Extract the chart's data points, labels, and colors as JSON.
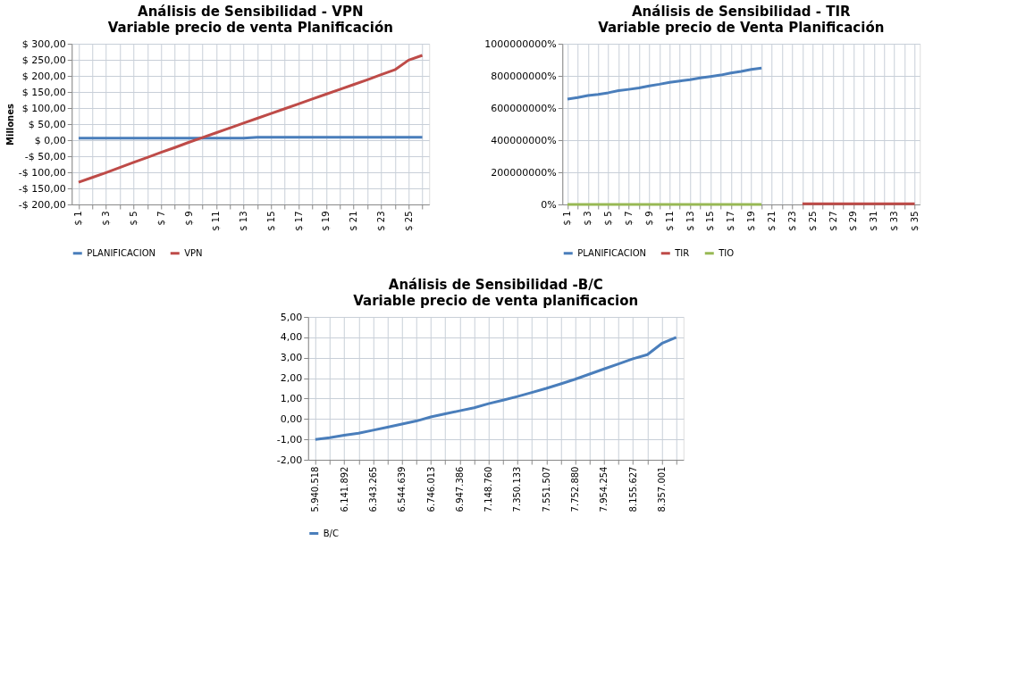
{
  "chart_data": [
    {
      "type": "line",
      "title": "Análisis de Sensibilidad - VPN",
      "subtitle": "Variable precio de venta Planificación",
      "ylabel": "Millones",
      "categories": [
        "$ 1",
        null,
        "$ 3",
        null,
        "$ 5",
        null,
        "$ 7",
        null,
        "$ 9",
        null,
        "$ 11",
        null,
        "$ 13",
        null,
        "$ 15",
        null,
        "$ 17",
        null,
        "$ 19",
        null,
        "$ 21",
        null,
        "$ 23",
        null,
        "$ 25",
        null
      ],
      "series": [
        {
          "name": "PLANIFICACION",
          "color": "#4a7ebb",
          "values": [
            6,
            6,
            6,
            6,
            6,
            6,
            6,
            6,
            6,
            6,
            6,
            6,
            6,
            9,
            9,
            9,
            9,
            9,
            9,
            9,
            9,
            9,
            9,
            9,
            9,
            9
          ]
        },
        {
          "name": "VPN",
          "color": "#be4b48",
          "values": [
            -131,
            -116,
            -101,
            -85,
            -69,
            -54,
            -38,
            -23,
            -7,
            8,
            23,
            38,
            53,
            68,
            83,
            98,
            113,
            128,
            143,
            158,
            173,
            188,
            204,
            219,
            249,
            264
          ]
        }
      ],
      "ylim": [
        -200,
        300
      ],
      "yticks": [
        {
          "value": -200,
          "label": "-$ 200,00"
        },
        {
          "value": -150,
          "label": "-$ 150,00"
        },
        {
          "value": -100,
          "label": "-$ 100,00"
        },
        {
          "value": -50,
          "label": "-$ 50,00"
        },
        {
          "value": 0,
          "label": "$ 0,00"
        },
        {
          "value": 50,
          "label": "$ 50,00"
        },
        {
          "value": 100,
          "label": "$ 100,00"
        },
        {
          "value": 150,
          "label": "$ 150,00"
        },
        {
          "value": 200,
          "label": "$ 200,00"
        },
        {
          "value": 250,
          "label": "$ 250,00"
        },
        {
          "value": 300,
          "label": "$ 300,00"
        }
      ],
      "grid": true,
      "legend": "bottom"
    },
    {
      "type": "line",
      "title": "Análisis de Sensibilidad - TIR",
      "subtitle": "Variable precio de Venta Planificación",
      "categories": [
        "$ 1",
        null,
        "$ 3",
        null,
        "$ 5",
        null,
        "$ 7",
        null,
        "$ 9",
        null,
        "$ 11",
        null,
        "$ 13",
        null,
        "$ 15",
        null,
        "$ 17",
        null,
        "$ 19",
        null,
        "$ 21",
        null,
        "$ 23",
        null,
        "$ 25",
        null,
        "$ 27",
        null,
        "$ 29",
        null,
        "$ 31",
        null,
        "$ 33",
        null,
        "$ 35"
      ],
      "series": [
        {
          "name": "PLANIFICACION",
          "color": "#4a7ebb",
          "values": [
            655000000,
            665000000,
            678000000,
            685000000,
            695000000,
            708000000,
            716000000,
            725000000,
            738000000,
            748000000,
            760000000,
            768000000,
            776000000,
            788000000,
            796000000,
            805000000,
            818000000,
            828000000,
            840000000,
            848000000,
            null,
            null,
            null,
            null,
            null,
            null,
            null,
            null,
            null,
            null,
            null,
            null,
            null,
            null,
            null
          ]
        },
        {
          "name": "TIR",
          "color": "#be4b48",
          "values": [
            null,
            null,
            null,
            null,
            null,
            null,
            null,
            null,
            null,
            null,
            null,
            null,
            null,
            null,
            null,
            null,
            null,
            null,
            null,
            null,
            null,
            null,
            null,
            4000000,
            4000000,
            4000000,
            4000000,
            4000000,
            4000000,
            4000000,
            4000000,
            4000000,
            4000000,
            4000000,
            4000000
          ]
        },
        {
          "name": "TIO",
          "color": "#98b954",
          "values": [
            0,
            0,
            0,
            0,
            0,
            0,
            0,
            0,
            0,
            0,
            0,
            0,
            0,
            0,
            0,
            0,
            0,
            0,
            0,
            0,
            null,
            null,
            null,
            null,
            null,
            null,
            null,
            null,
            null,
            null,
            null,
            null,
            null,
            null,
            null
          ]
        }
      ],
      "ylim": [
        0,
        1000000000
      ],
      "yticks": [
        {
          "value": 0,
          "label": "0%"
        },
        {
          "value": 200000000,
          "label": "200000000%"
        },
        {
          "value": 400000000,
          "label": "400000000%"
        },
        {
          "value": 600000000,
          "label": "600000000%"
        },
        {
          "value": 800000000,
          "label": "800000000%"
        },
        {
          "value": 1000000000,
          "label": "1000000000%"
        }
      ],
      "grid": true,
      "legend": "bottom"
    },
    {
      "type": "line",
      "title": "Análisis de Sensibilidad -B/C",
      "subtitle": "Variable precio de venta planificacion",
      "categories": [
        "5.940.518",
        null,
        "6.141.892",
        null,
        "6.343.265",
        null,
        "6.544.639",
        null,
        "6.746.013",
        null,
        "6.947.386",
        null,
        "7.148.760",
        null,
        "7.350.133",
        null,
        "7.551.507",
        null,
        "7.752.880",
        null,
        "7.954.254",
        null,
        "8.155.627",
        null,
        "8.357.001",
        null
      ],
      "series": [
        {
          "name": "B/C",
          "color": "#4a7ebb",
          "values": [
            -1.0,
            -0.92,
            -0.8,
            -0.7,
            -0.55,
            -0.4,
            -0.25,
            -0.1,
            0.1,
            0.25,
            0.4,
            0.55,
            0.75,
            0.92,
            1.1,
            1.3,
            1.5,
            1.72,
            1.95,
            2.2,
            2.45,
            2.7,
            2.95,
            3.15,
            3.7,
            4.0
          ]
        }
      ],
      "ylim": [
        -2,
        5
      ],
      "yticks": [
        {
          "value": -2,
          "label": "-2,00"
        },
        {
          "value": -1,
          "label": "-1,00"
        },
        {
          "value": 0,
          "label": "0,00"
        },
        {
          "value": 1,
          "label": "1,00"
        },
        {
          "value": 2,
          "label": "2,00"
        },
        {
          "value": 3,
          "label": "3,00"
        },
        {
          "value": 4,
          "label": "4,00"
        },
        {
          "value": 5,
          "label": "5,00"
        }
      ],
      "grid": true,
      "legend": "bottom"
    }
  ]
}
